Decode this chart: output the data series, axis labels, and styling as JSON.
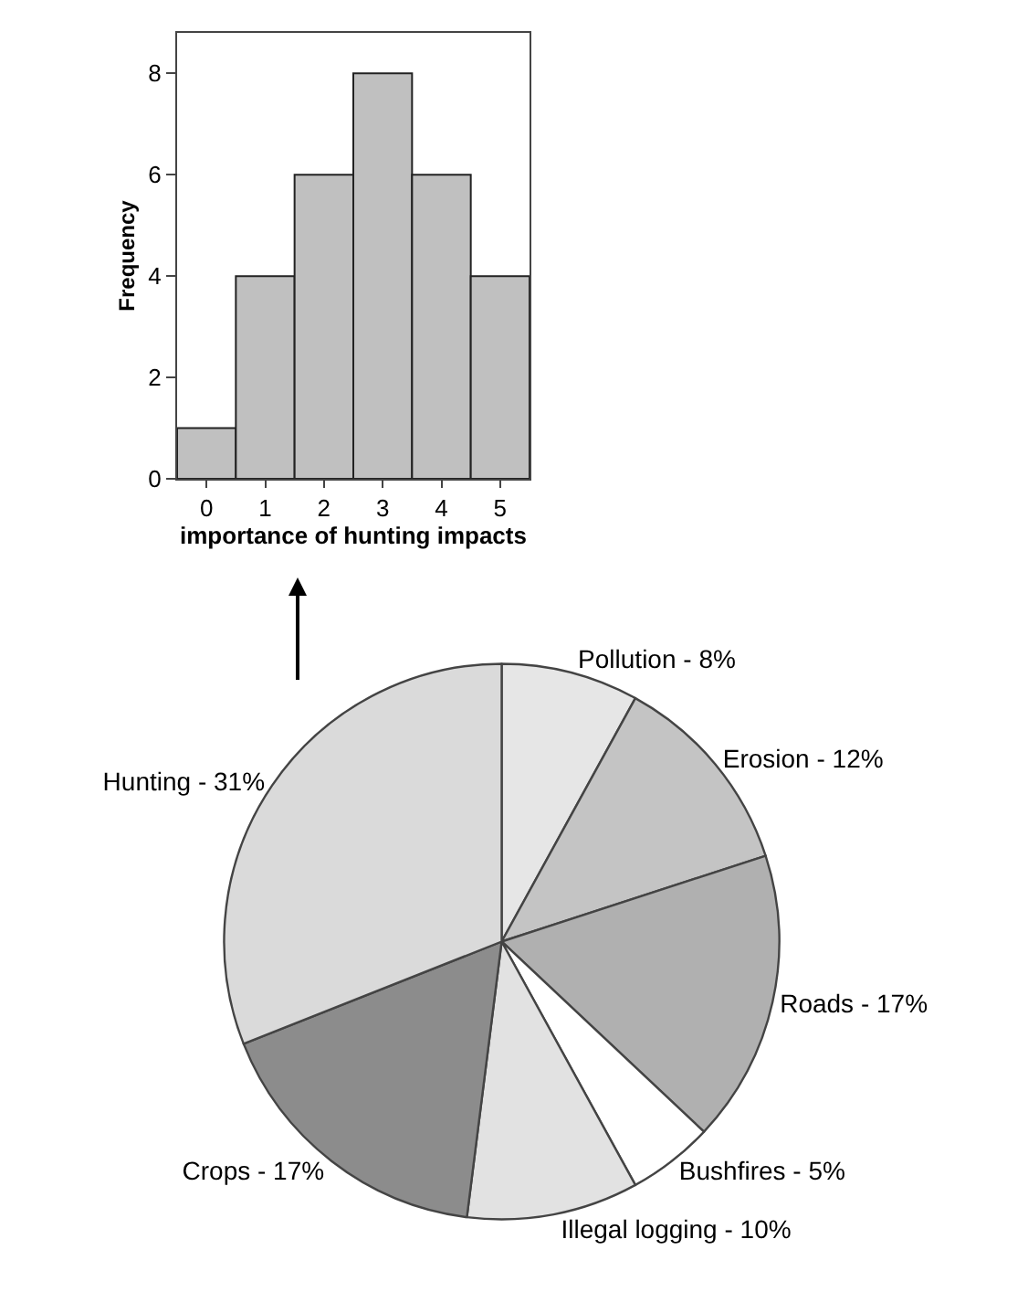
{
  "chart_data": [
    {
      "type": "histogram",
      "xlabel": "importance of hunting impacts",
      "ylabel": "Frequency",
      "bins": [
        -0.5,
        0.5,
        1.5,
        2.5,
        3.5,
        4.5,
        5.5
      ],
      "values": [
        1,
        4,
        6,
        8,
        6,
        4
      ],
      "color": "#c0c0c0",
      "xlim": [
        -0.5,
        5.5
      ],
      "xticks": [
        0,
        1,
        2,
        3,
        4,
        5
      ],
      "ylim": [
        0,
        8.8
      ],
      "yticks": [
        0,
        2,
        4,
        6,
        8
      ],
      "grid": false,
      "legend": false
    },
    {
      "type": "pie",
      "categories": [
        "Pollution - 8%",
        "Erosion - 12%",
        "Roads - 17%",
        "Bushfires - 5%",
        "Illegal logging - 10%",
        "Crops - 17%",
        "Hunting - 31%"
      ],
      "values": [
        8,
        12,
        17,
        5,
        10,
        17,
        31
      ],
      "colors": [
        "#e6e6e6",
        "#c4c4c4",
        "#b0b0b0",
        "#ffffff",
        "#e2e2e2",
        "#8c8c8c",
        "#dadada"
      ],
      "legend": false
    }
  ]
}
